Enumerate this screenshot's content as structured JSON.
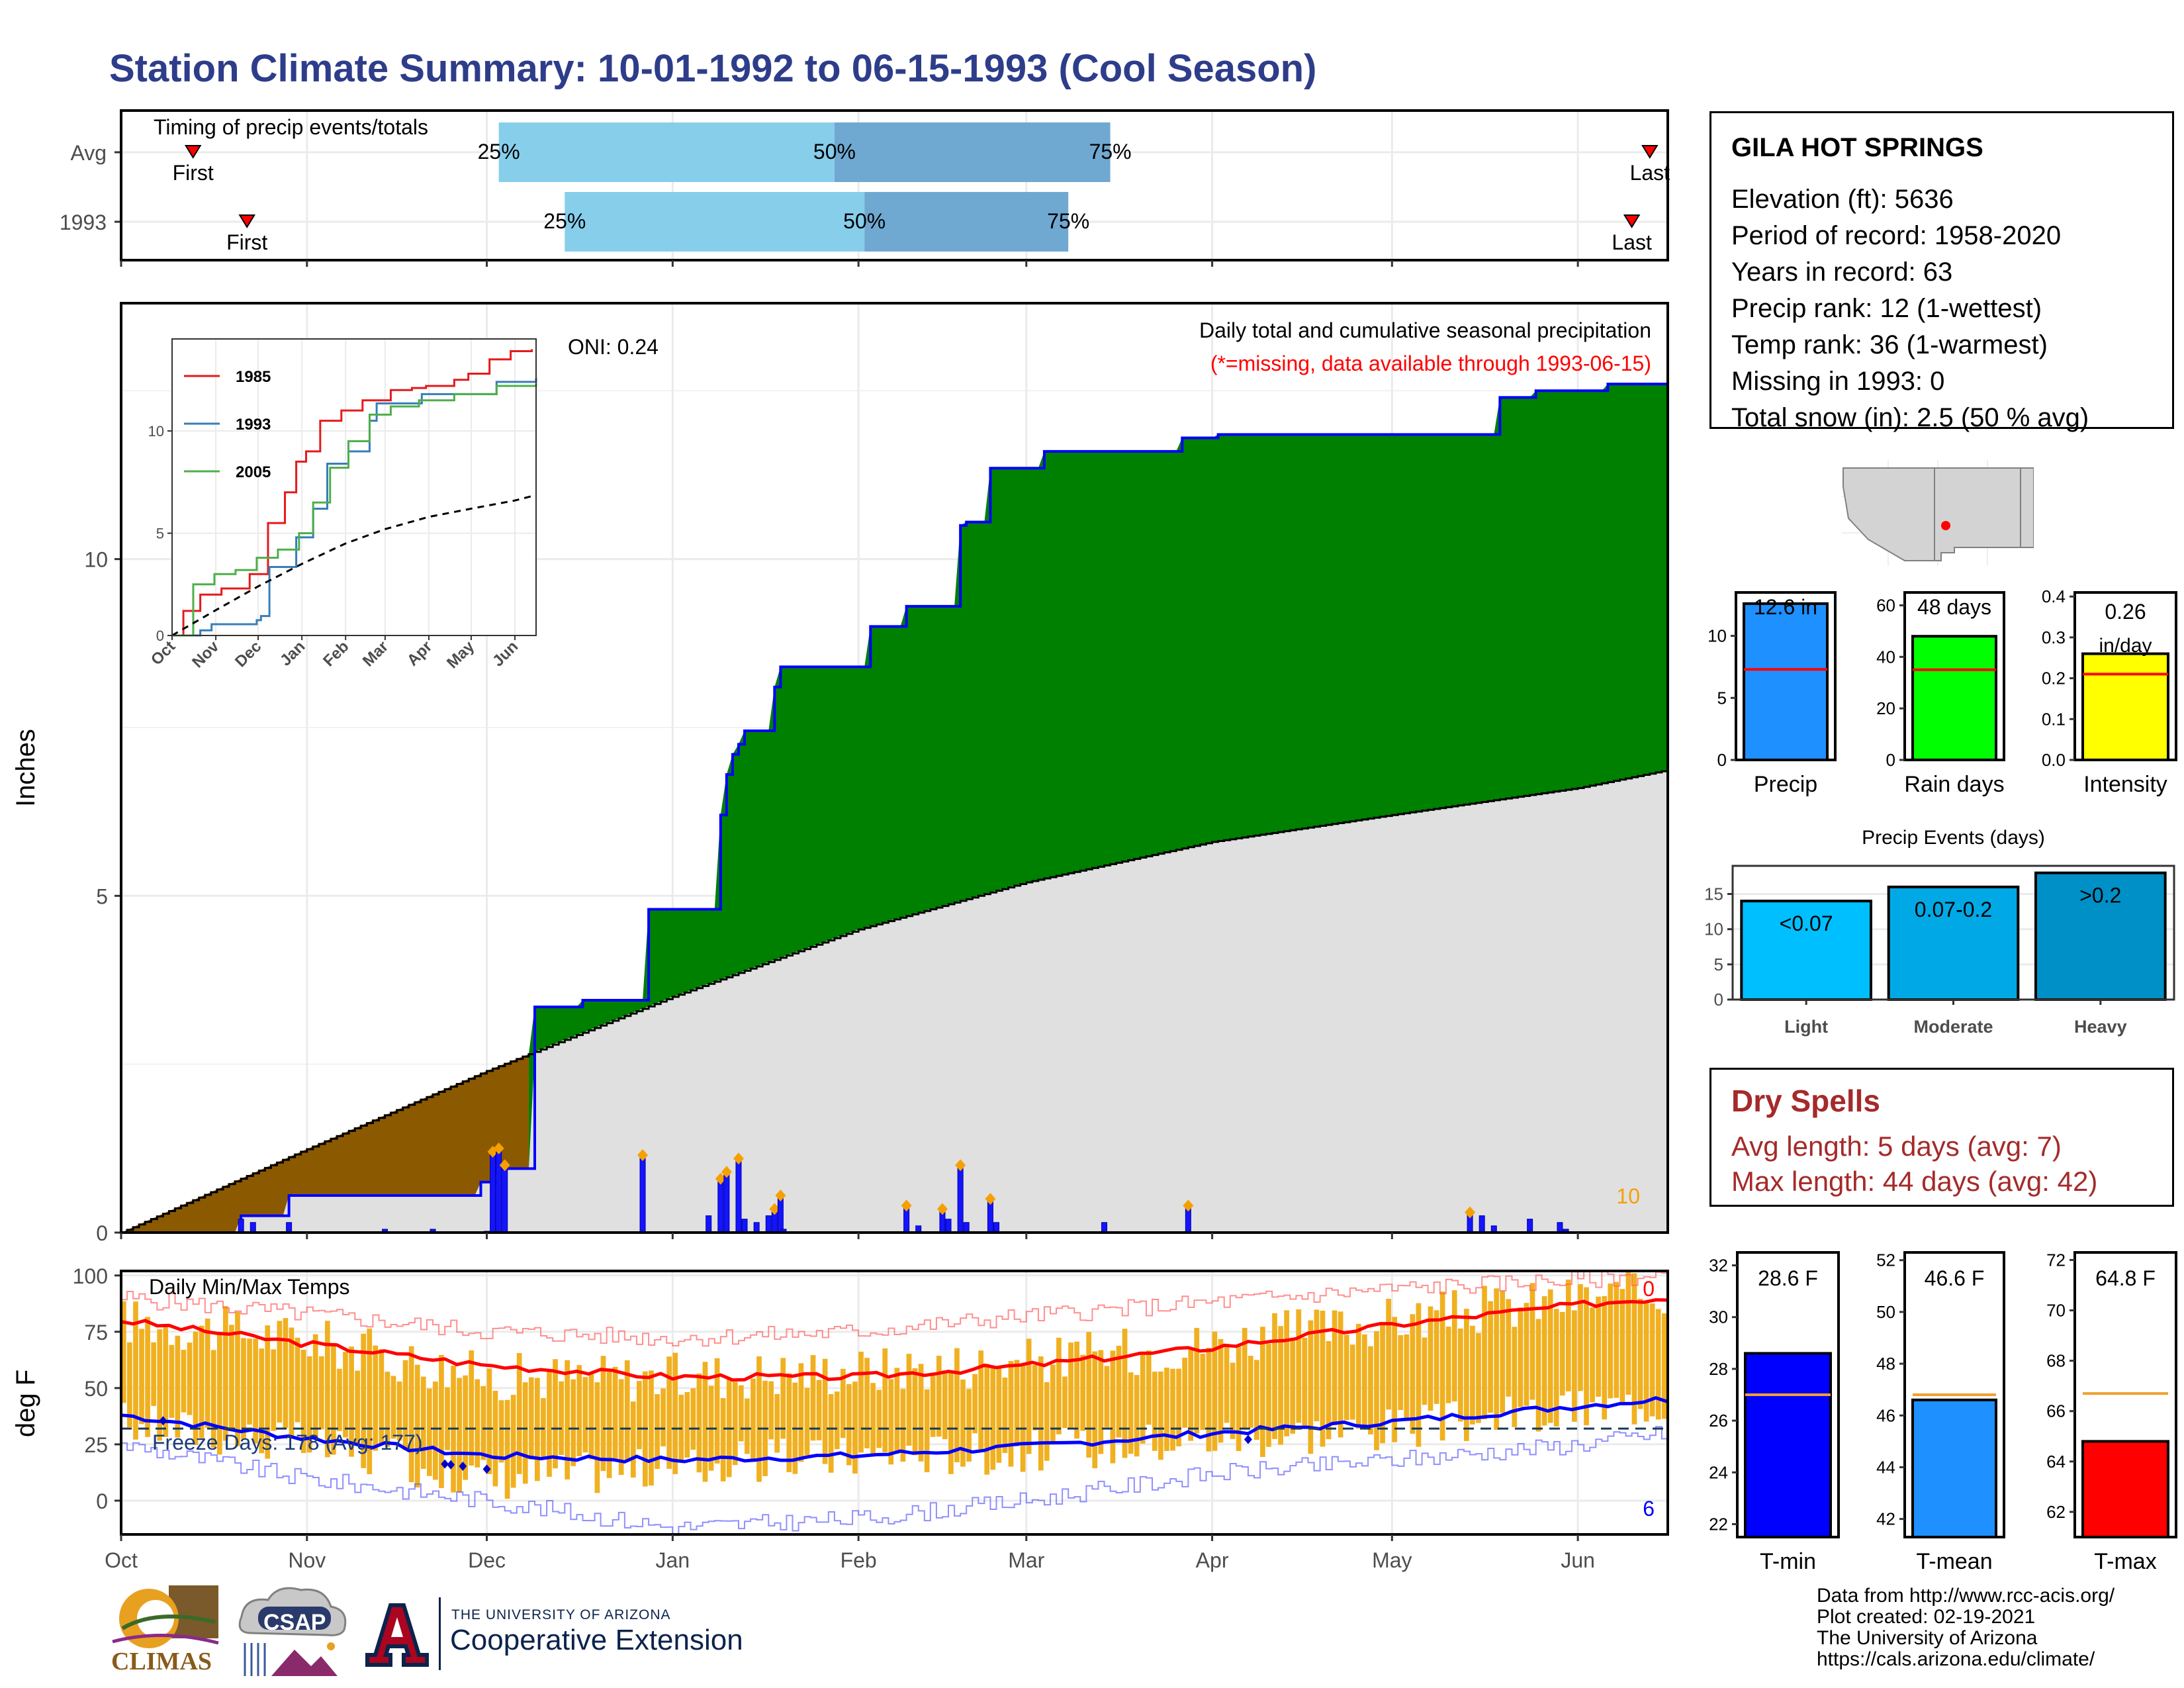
{
  "page": {
    "title": "Station Climate Summary: 10-01-1992 to 06-15-1993 (Cool Season)"
  },
  "station": {
    "name": "GILA HOT SPRINGS",
    "lines": [
      "Elevation (ft): 5636",
      "Period of record: 1958-2020",
      "Years in record: 63",
      "Precip rank: 12 (1-wettest)",
      "Temp rank: 36 (1-warmest)",
      "Missing in 1993: 0",
      "Total snow (in): 2.5 (50 % avg)"
    ]
  },
  "dry_spells": {
    "title": "Dry Spells",
    "avg_length": "Avg length: 5 days (avg: 7)",
    "max_length": "Max length: 44 days (avg: 42)"
  },
  "credits": [
    "Data from http://www.rcc-acis.org/",
    "Plot created: 02-19-2021",
    "The University of Arizona",
    "https://cals.arizona.edu/climate/"
  ],
  "logos": {
    "climas": "CLIMAS",
    "csap": "CSAP",
    "ua_small": "THE UNIVERSITY OF ARIZONA",
    "ua_big": "Cooperative Extension"
  },
  "colors": {
    "title": "#2e3d8a",
    "surplus": "#008000",
    "deficit": "#8b5a00",
    "avg_fill": "#e0e0e0",
    "precip_bar": "#1414ff",
    "temp_bar": "#f0b020",
    "tmax_line": "#ff0000",
    "tmin_line": "#0000ff",
    "timing_light": "#87ceeb",
    "timing_dark": "#6fa8d0"
  },
  "chart_data": [
    {
      "id": "timing",
      "type": "bar",
      "title": "Timing of precip events/totals",
      "rows": [
        {
          "label": "Avg",
          "first_day": 12,
          "p25_day": 63,
          "p50_day": 119,
          "p75_day": 165,
          "last_day": 255,
          "first_label": "First",
          "p25_label": "25%",
          "p50_label": "50%",
          "p75_label": "75%",
          "last_label": "Last"
        },
        {
          "label": "1993",
          "first_day": 21,
          "p25_day": 74,
          "p50_day": 124,
          "p75_day": 158,
          "last_day": 252,
          "first_label": "First",
          "p25_label": "25%",
          "p50_label": "50%",
          "p75_label": "75%",
          "last_label": "Last"
        }
      ]
    },
    {
      "id": "cumulative",
      "type": "area",
      "title": "Daily total and cumulative seasonal precipitation",
      "subtitle": "(*=missing, data available through 1993-06-15)",
      "oni": "ONI: 0.24",
      "ylabel": "Inches",
      "ylim": [
        0,
        13.8
      ],
      "yticks": [
        0,
        5,
        10
      ],
      "x_months": [
        "Oct",
        "Nov",
        "Dec",
        "Jan",
        "Feb",
        "Mar",
        "Apr",
        "May",
        "Jun"
      ],
      "corner_label": "10",
      "avg_cumulative": {
        "day": [
          0,
          30,
          61,
          92,
          123,
          151,
          182,
          212,
          243,
          257
        ],
        "inches": [
          0,
          1.2,
          2.4,
          3.5,
          4.5,
          5.2,
          5.8,
          6.2,
          6.6,
          6.85
        ]
      },
      "cumulative_1993": {
        "day": [
          0,
          20,
          28,
          60,
          63,
          69,
          77,
          87,
          88,
          99,
          100,
          101,
          102,
          103,
          104,
          109,
          110,
          123,
          125,
          131,
          140,
          141,
          145,
          150,
          154,
          177,
          183,
          224,
          230,
          236,
          240,
          248,
          258
        ],
        "inches": [
          0,
          0.25,
          0.55,
          0.75,
          0.95,
          3.35,
          3.45,
          3.45,
          4.8,
          4.8,
          6.2,
          6.8,
          7.1,
          7.25,
          7.45,
          8.1,
          8.4,
          8.4,
          9.0,
          9.3,
          10.5,
          10.55,
          11.35,
          11.35,
          11.6,
          11.8,
          11.85,
          11.85,
          12.4,
          12.5,
          12.5,
          12.6,
          12.6
        ]
      },
      "daily_precip": {
        "day": [
          20,
          22,
          28,
          44,
          52,
          61,
          62,
          63,
          64,
          87,
          98,
          100,
          101,
          103,
          104,
          106,
          108,
          109,
          110,
          110.5,
          131,
          133,
          137,
          138,
          140,
          141,
          145,
          146,
          164,
          178,
          225,
          227,
          229,
          235,
          240,
          241
        ],
        "inches": [
          0.2,
          0.15,
          0.15,
          0.05,
          0.05,
          0.02,
          1.2,
          1.25,
          1.0,
          1.15,
          0.25,
          0.8,
          0.9,
          1.1,
          0.2,
          0.15,
          0.25,
          0.35,
          0.55,
          0.05,
          0.4,
          0.1,
          0.35,
          0.2,
          1.0,
          0.15,
          0.5,
          0.15,
          0.15,
          0.4,
          0.3,
          0.25,
          0.1,
          0.2,
          0.15,
          0.05
        ]
      },
      "inset": {
        "type": "line",
        "ylim": [
          0,
          14.5
        ],
        "yticks": [
          0,
          5,
          10
        ],
        "x_months": [
          "Oct",
          "Nov",
          "Dec",
          "Jan",
          "Feb",
          "Mar",
          "Apr",
          "May",
          "Jun"
        ],
        "series": [
          {
            "name": "1985",
            "color": "#e41a1c",
            "day": [
              0,
              8,
              20,
              35,
              55,
              68,
              80,
              88,
              95,
              105,
              120,
              135,
              155,
              170,
              180,
              200,
              210,
              225,
              240,
              255
            ],
            "inches": [
              0,
              1.2,
              2.0,
              2.3,
              3.0,
              5.5,
              7.0,
              8.5,
              9.0,
              10.5,
              11.0,
              11.5,
              12.0,
              12.1,
              12.2,
              12.5,
              12.8,
              13.5,
              13.9,
              14.0
            ]
          },
          {
            "name": "1993",
            "color": "#377eb8",
            "day": [
              0,
              20,
              28,
              60,
              63,
              69,
              88,
              100,
              110,
              125,
              140,
              145,
              177,
              230,
              258
            ],
            "inches": [
              0,
              0.25,
              0.55,
              0.75,
              0.95,
              3.35,
              4.8,
              6.2,
              8.4,
              9.0,
              10.5,
              11.35,
              11.8,
              12.4,
              12.6
            ]
          },
          {
            "name": "2005",
            "color": "#4daf4a",
            "day": [
              0,
              15,
              30,
              45,
              60,
              75,
              90,
              100,
              112,
              125,
              140,
              155,
              175,
              200,
              230,
              258
            ],
            "inches": [
              0,
              2.5,
              3.0,
              3.2,
              3.8,
              4.2,
              5.0,
              6.5,
              8.2,
              9.5,
              10.8,
              11.2,
              11.5,
              11.8,
              12.2,
              12.3
            ]
          },
          {
            "name": "",
            "color": "#000000",
            "dashed": true,
            "day": [
              0,
              30,
              61,
              92,
              123,
              151,
              182,
              212,
              243,
              257
            ],
            "inches": [
              0,
              1.2,
              2.4,
              3.5,
              4.5,
              5.2,
              5.8,
              6.2,
              6.6,
              6.85
            ]
          }
        ]
      }
    },
    {
      "id": "temps",
      "type": "bar",
      "title": "Daily Min/Max Temps",
      "ylabel": "deg F",
      "ylim": [
        -15,
        102
      ],
      "yticks": [
        0,
        25,
        50,
        75,
        100
      ],
      "x_months": [
        "Oct",
        "Nov",
        "Dec",
        "Jan",
        "Feb",
        "Mar",
        "Apr",
        "May",
        "Jun"
      ],
      "freeze_label": "Freeze Days: 178 (Avg: 177)",
      "freeze_line": 32,
      "count_max": "0",
      "count_min": "6",
      "tmax_avg": {
        "day": [
          0,
          30,
          61,
          92,
          123,
          151,
          182,
          212,
          243,
          257
        ],
        "degf": [
          80,
          70,
          60,
          55,
          55,
          60,
          68,
          78,
          87,
          90
        ]
      },
      "tmin_avg": {
        "day": [
          0,
          30,
          61,
          92,
          123,
          151,
          182,
          212,
          243,
          257
        ],
        "degf": [
          38,
          28,
          20,
          18,
          20,
          24,
          30,
          35,
          42,
          45
        ]
      },
      "tmax_record": {
        "day": [
          0,
          30,
          61,
          92,
          123,
          151,
          182,
          212,
          243,
          257
        ],
        "degf": [
          90,
          83,
          75,
          72,
          75,
          82,
          88,
          94,
          98,
          100
        ]
      },
      "tmin_record": {
        "day": [
          0,
          30,
          61,
          92,
          123,
          151,
          182,
          212,
          243,
          257
        ],
        "degf": [
          25,
          10,
          0,
          -12,
          -8,
          0,
          12,
          18,
          25,
          30
        ]
      },
      "tmin_1993": {
        "day": [
          0,
          30,
          61,
          92,
          123,
          151,
          182,
          212,
          243,
          257
        ],
        "degf": [
          35,
          25,
          10,
          15,
          20,
          22,
          28,
          32,
          40,
          44
        ]
      },
      "tmax_1993": {
        "day": [
          0,
          30,
          61,
          92,
          123,
          151,
          182,
          212,
          243,
          257
        ],
        "degf": [
          80,
          72,
          55,
          55,
          58,
          62,
          70,
          80,
          90,
          92
        ]
      },
      "below_freeze_days": [
        7,
        54,
        55,
        57,
        61,
        188
      ]
    },
    {
      "id": "seasonal",
      "type": "bar",
      "panels": [
        {
          "name": "Precip",
          "label": "12.6 in",
          "value": 12.6,
          "avg": 7.3,
          "ylim": [
            0,
            13.5
          ],
          "yticks": [
            0,
            5,
            10
          ],
          "color": "#1e90ff"
        },
        {
          "name": "Rain days",
          "label": "48 days",
          "value": 48,
          "avg": 35,
          "ylim": [
            0,
            65
          ],
          "yticks": [
            0,
            20,
            40,
            60
          ],
          "color": "#00ff00"
        },
        {
          "name": "Intensity",
          "label": "0.26 in/day",
          "value": 0.26,
          "avg": 0.21,
          "ylim": [
            0,
            0.41
          ],
          "yticks": [
            0.0,
            0.1,
            0.2,
            0.3,
            0.4
          ],
          "color": "#ffff00"
        }
      ]
    },
    {
      "id": "events",
      "type": "bar",
      "title": "Precip Events (days)",
      "categories": [
        "Light",
        "Moderate",
        "Heavy"
      ],
      "bar_labels": [
        "<0.07",
        "0.07-0.2",
        ">0.2"
      ],
      "values": [
        14,
        16,
        18
      ],
      "ylim": [
        0,
        19
      ],
      "yticks": [
        0,
        5,
        10,
        15
      ],
      "colors": [
        "#00bfff",
        "#00a9e6",
        "#0090c8"
      ]
    },
    {
      "id": "tsummary",
      "type": "bar",
      "panels": [
        {
          "name": "T-min",
          "label": "28.6 F",
          "value": 28.6,
          "avg": 27.0,
          "ylim": [
            21.5,
            32.5
          ],
          "yticks": [
            22,
            24,
            26,
            28,
            30,
            32
          ],
          "color": "#0000ff"
        },
        {
          "name": "T-mean",
          "label": "46.6 F",
          "value": 46.6,
          "avg": 46.8,
          "ylim": [
            41.3,
            52.3
          ],
          "yticks": [
            42,
            44,
            46,
            48,
            50,
            52
          ],
          "color": "#1e90ff"
        },
        {
          "name": "T-max",
          "label": "64.8 F",
          "value": 64.8,
          "avg": 66.7,
          "ylim": [
            61.0,
            72.3
          ],
          "yticks": [
            62,
            64,
            66,
            68,
            70,
            72
          ],
          "color": "#ff0000"
        }
      ]
    }
  ]
}
